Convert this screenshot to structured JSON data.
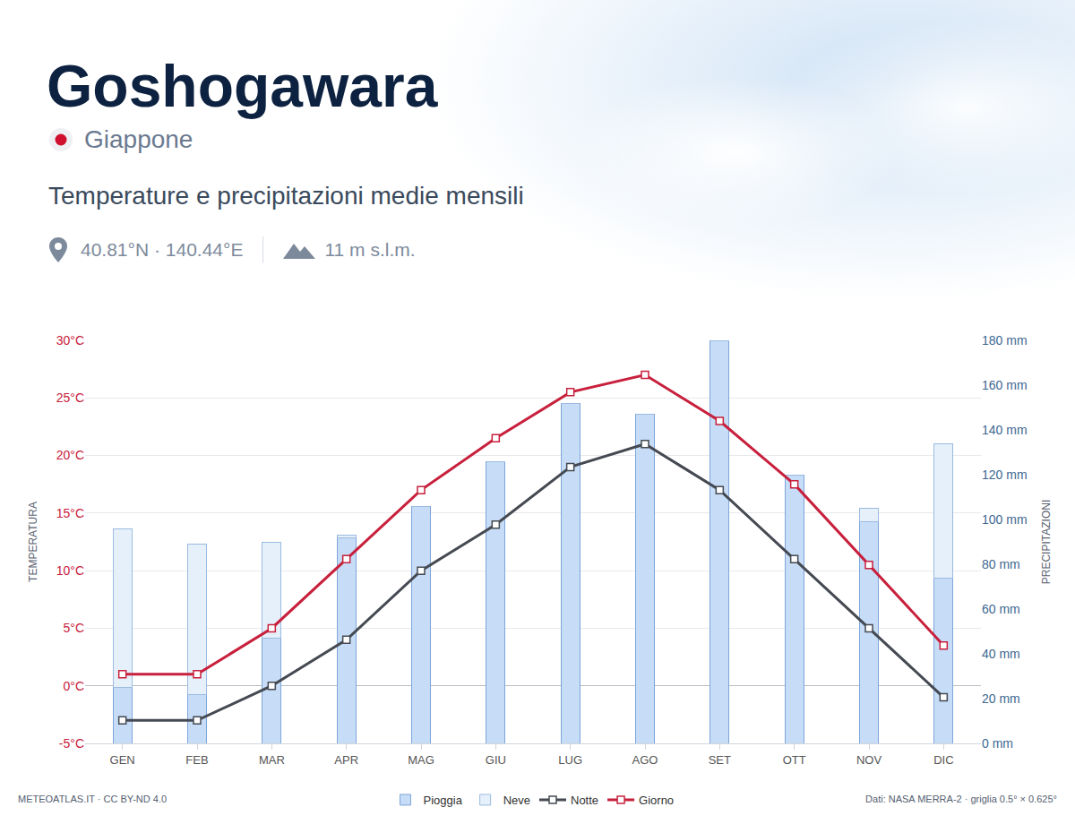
{
  "header": {
    "title": "Goshogawara",
    "country": "Giappone",
    "subtitle": "Temperature e precipitazioni medie mensili",
    "coordinates": "40.81°N · 140.44°E",
    "elevation": "11 m s.l.m."
  },
  "footer": {
    "credit": "METEOATLAS.IT · CC BY-ND 4.0",
    "source": "Dati: NASA MERRA-2 · griglia 0.5° × 0.625°"
  },
  "chart_data": {
    "type": "bar",
    "categories": [
      "GEN",
      "FEB",
      "MAR",
      "APR",
      "MAG",
      "GIU",
      "LUG",
      "AGO",
      "SET",
      "OTT",
      "NOV",
      "DIC"
    ],
    "y_label": "TEMPERATURA",
    "y2_label": "PRECIPITAZIONI",
    "ylim": [
      -5,
      30
    ],
    "yticks": [
      {
        "value": -5,
        "label": "-5°C"
      },
      {
        "value": 0,
        "label": "0°C"
      },
      {
        "value": 5,
        "label": "5°C"
      },
      {
        "value": 10,
        "label": "10°C"
      },
      {
        "value": 15,
        "label": "15°C"
      },
      {
        "value": 20,
        "label": "20°C"
      },
      {
        "value": 25,
        "label": "25°C"
      },
      {
        "value": 30,
        "label": "30°C"
      }
    ],
    "y2lim": [
      0,
      180
    ],
    "y2ticks": [
      {
        "value": 0,
        "label": "0 mm"
      },
      {
        "value": 20,
        "label": "20 mm"
      },
      {
        "value": 40,
        "label": "40 mm"
      },
      {
        "value": 60,
        "label": "60 mm"
      },
      {
        "value": 80,
        "label": "80 mm"
      },
      {
        "value": 100,
        "label": "100 mm"
      },
      {
        "value": 120,
        "label": "120 mm"
      },
      {
        "value": 140,
        "label": "140 mm"
      },
      {
        "value": 160,
        "label": "160 mm"
      },
      {
        "value": 180,
        "label": "180 mm"
      }
    ],
    "grid": true,
    "stacked": true,
    "legend": "bottom",
    "series": [
      {
        "name": "Giorno",
        "type": "line",
        "color": "#c8203c",
        "marker": "square",
        "line_style": "solid",
        "values": [
          1,
          1,
          5,
          11,
          17,
          21.5,
          25.5,
          27,
          23,
          17.5,
          10.5,
          3.5
        ]
      },
      {
        "name": "Notte",
        "type": "line",
        "color": "#454a52",
        "marker": "square",
        "line_style": "solid",
        "values": [
          -3,
          -3,
          0,
          4,
          10,
          14,
          19,
          21,
          17,
          11,
          5,
          -1
        ]
      },
      {
        "name": "Neve",
        "type": "bar",
        "axis": "y2",
        "color": "#e6f0fb",
        "values": [
          71,
          67,
          43,
          1,
          0,
          0,
          0,
          0,
          0,
          0,
          6,
          60
        ]
      },
      {
        "name": "Pioggia",
        "type": "bar",
        "axis": "y2",
        "color": "#c6dcf7",
        "values": [
          25,
          22,
          47,
          92,
          106,
          126,
          152,
          147,
          180,
          120,
          99,
          74
        ]
      }
    ]
  }
}
